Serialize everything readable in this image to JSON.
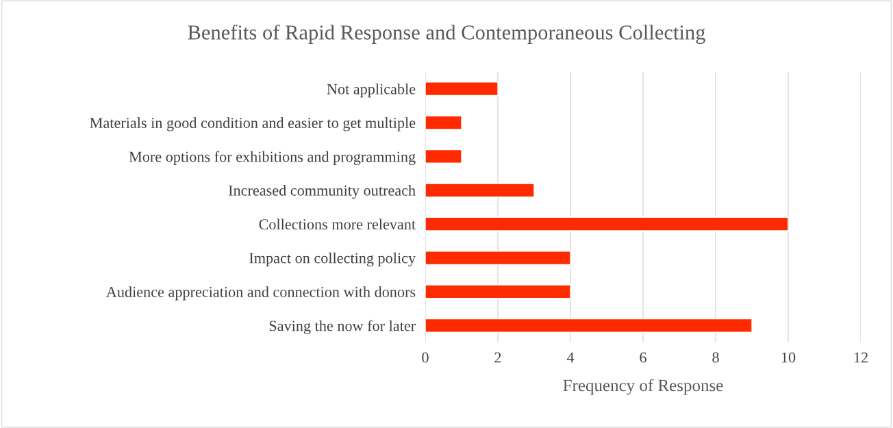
{
  "chart_data": {
    "type": "bar",
    "orientation": "horizontal",
    "title": "Benefits of Rapid Response and Contemporaneous Collecting",
    "xlabel": "Frequency of Response",
    "categories": [
      "Not applicable",
      "Materials in good condition and easier to get multiple",
      "More options for exhibitions and programming",
      "Increased community outreach",
      "Collections more relevant",
      "Impact on collecting policy",
      "Audience appreciation and connection with donors",
      "Saving the now for later"
    ],
    "values": [
      2,
      1,
      1,
      3,
      10,
      4,
      4,
      9
    ],
    "color": "#ff2a00",
    "xlim": [
      0,
      12
    ],
    "xticks": [
      0,
      2,
      4,
      6,
      8,
      10,
      12
    ],
    "grid": "x",
    "legend": false
  }
}
